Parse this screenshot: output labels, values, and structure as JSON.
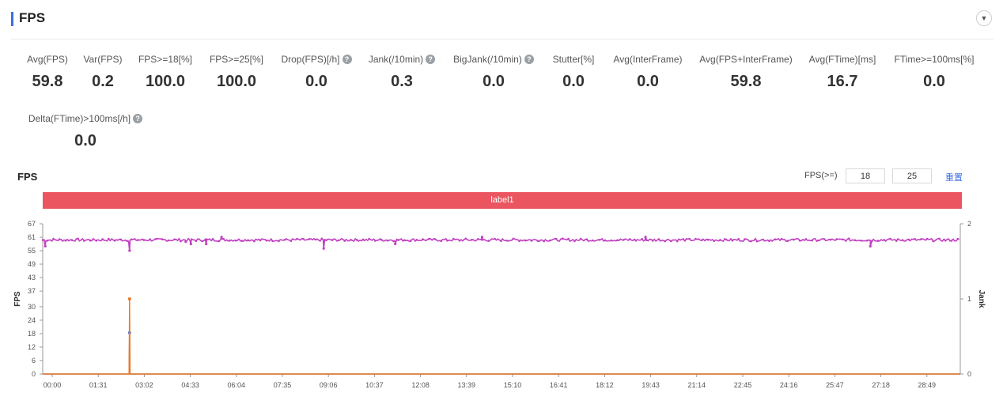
{
  "header": {
    "title": "FPS"
  },
  "metrics": [
    {
      "label": "Avg(FPS)",
      "value": "59.8",
      "help": false
    },
    {
      "label": "Var(FPS)",
      "value": "0.2",
      "help": false
    },
    {
      "label": "FPS>=18[%]",
      "value": "100.0",
      "help": false
    },
    {
      "label": "FPS>=25[%]",
      "value": "100.0",
      "help": false
    },
    {
      "label": "Drop(FPS)[/h]",
      "value": "0.0",
      "help": true
    },
    {
      "label": "Jank(/10min)",
      "value": "0.3",
      "help": true
    },
    {
      "label": "BigJank(/10min)",
      "value": "0.0",
      "help": true
    },
    {
      "label": "Stutter[%]",
      "value": "0.0",
      "help": false
    },
    {
      "label": "Avg(InterFrame)",
      "value": "0.0",
      "help": false
    },
    {
      "label": "Avg(FPS+InterFrame)",
      "value": "59.8",
      "help": false
    },
    {
      "label": "Avg(FTime)[ms]",
      "value": "16.7",
      "help": false
    },
    {
      "label": "FTime>=100ms[%]",
      "value": "0.0",
      "help": false
    },
    {
      "label": "Delta(FTime)>100ms[/h]",
      "value": "0.0",
      "help": true
    }
  ],
  "chart_section": {
    "title": "FPS",
    "filter_label": "FPS(>=)",
    "threshold_low": "18",
    "threshold_high": "25",
    "reset_label": "重置",
    "band_label": "label1"
  },
  "colors": {
    "accent": "#3d6fe0",
    "band": "#eb5560",
    "fps_series": "#c040c0",
    "jank_series": "#f07820",
    "bigjank_series": "#4a7fe0"
  },
  "chart_data": {
    "type": "line",
    "x_ticks": [
      "00:00",
      "01:31",
      "03:02",
      "04:33",
      "06:04",
      "07:35",
      "09:06",
      "10:37",
      "12:08",
      "13:39",
      "15:10",
      "16:41",
      "18:12",
      "19:43",
      "21:14",
      "22:45",
      "24:16",
      "25:47",
      "27:18",
      "28:49"
    ],
    "x_range_seconds": [
      0,
      1796
    ],
    "ylabel": "FPS",
    "y_ticks": [
      0,
      6,
      12,
      18,
      24,
      30,
      37,
      43,
      49,
      55,
      61,
      67
    ],
    "ylim": [
      0,
      67
    ],
    "y2label": "Jank",
    "y2_ticks": [
      0,
      1,
      2
    ],
    "y2lim": [
      0,
      2
    ],
    "series": [
      {
        "name": "FPS",
        "axis": "left",
        "baseline": 59.8,
        "dips": [
          {
            "t": 5,
            "v": 57
          },
          {
            "t": 170,
            "v": 55
          },
          {
            "t": 280,
            "v": 59
          },
          {
            "t": 290,
            "v": 58
          },
          {
            "t": 320,
            "v": 58
          },
          {
            "t": 550,
            "v": 56
          },
          {
            "t": 690,
            "v": 58
          },
          {
            "t": 1620,
            "v": 57
          }
        ],
        "peaks": [
          {
            "t": 350,
            "v": 61
          },
          {
            "t": 860,
            "v": 61
          },
          {
            "t": 1180,
            "v": 61
          }
        ]
      },
      {
        "name": "Jank",
        "axis": "right",
        "points": [
          {
            "t": 0,
            "v": 0
          },
          {
            "t": 169,
            "v": 0
          },
          {
            "t": 170,
            "v": 1
          },
          {
            "t": 171,
            "v": 0
          },
          {
            "t": 1796,
            "v": 0
          }
        ]
      },
      {
        "name": "BigJank",
        "axis": "right",
        "points": [
          {
            "t": 0,
            "v": 0
          },
          {
            "t": 169,
            "v": 0
          },
          {
            "t": 170,
            "v": 0.55
          },
          {
            "t": 171,
            "v": 0
          },
          {
            "t": 1796,
            "v": 0
          }
        ]
      }
    ]
  }
}
